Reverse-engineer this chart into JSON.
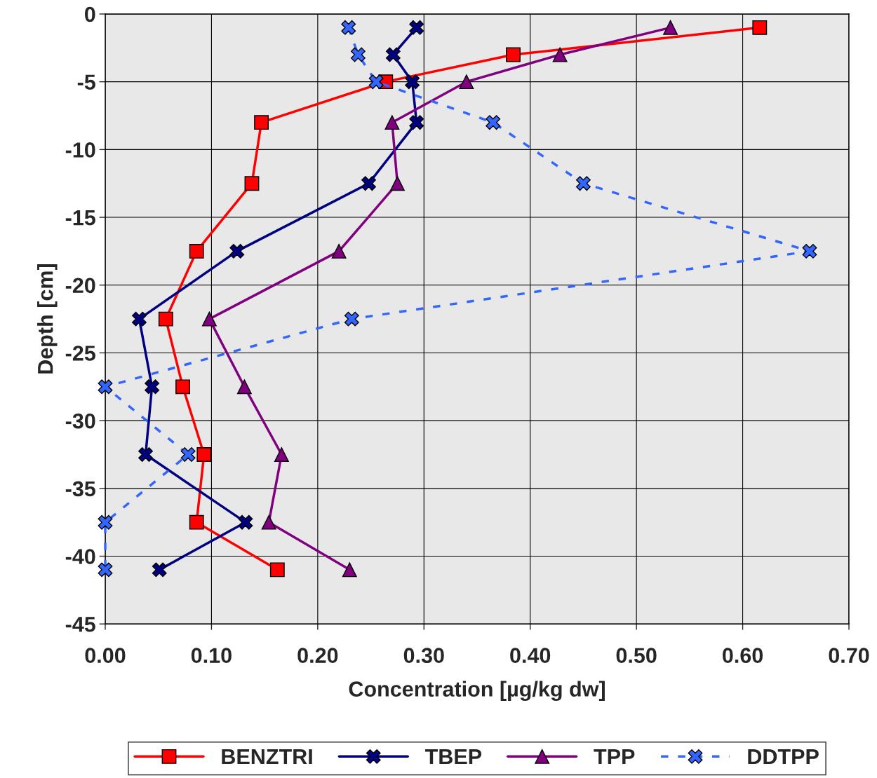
{
  "chart_data": {
    "type": "line",
    "xlabel": "Concentration [µg/kg dw]",
    "ylabel": "Depth [cm]",
    "xlim": [
      0,
      0.7
    ],
    "ylim": [
      -45,
      0
    ],
    "xticks": [
      {
        "value": 0,
        "label": "0.00"
      },
      {
        "value": 0.1,
        "label": "0.10"
      },
      {
        "value": 0.2,
        "label": "0.20"
      },
      {
        "value": 0.3,
        "label": "0.30"
      },
      {
        "value": 0.4,
        "label": "0.40"
      },
      {
        "value": 0.5,
        "label": "0.50"
      },
      {
        "value": 0.6,
        "label": "0.60"
      },
      {
        "value": 0.7,
        "label": "0.70"
      }
    ],
    "yticks": [
      0,
      -5,
      -10,
      -15,
      -20,
      -25,
      -30,
      -35,
      -40,
      -45
    ],
    "grid": true,
    "legend": "bottom",
    "series": [
      {
        "name": "BENZTRI",
        "color": "#ff0000",
        "marker": "square",
        "line_style": "solid",
        "x": [
          0.616,
          0.384,
          0.264,
          0.147,
          0.138,
          0.086,
          0.057,
          0.073,
          0.093,
          0.086,
          0.162
        ],
        "values": [
          -1,
          -3,
          -5,
          -8,
          -12.5,
          -17.5,
          -22.5,
          -27.5,
          -32.5,
          -37.5,
          -41
        ]
      },
      {
        "name": "TBEP",
        "color": "#000080",
        "marker": "cross",
        "line_style": "solid",
        "x": [
          0.293,
          0.271,
          0.289,
          0.293,
          0.248,
          0.124,
          0.032,
          0.044,
          0.038,
          0.132,
          0.051
        ],
        "values": [
          -1,
          -3,
          -5,
          -8,
          -12.5,
          -17.5,
          -22.5,
          -27.5,
          -32.5,
          -37.5,
          -41
        ]
      },
      {
        "name": "TPP",
        "color": "#800080",
        "marker": "triangle",
        "line_style": "solid",
        "x": [
          0.532,
          0.428,
          0.34,
          0.27,
          0.275,
          0.22,
          0.098,
          0.131,
          0.166,
          0.154,
          0.23
        ],
        "values": [
          -1,
          -3,
          -5,
          -8,
          -12.5,
          -17.5,
          -22.5,
          -27.5,
          -32.5,
          -37.5,
          -41
        ]
      },
      {
        "name": "DDTPP",
        "color": "#3366ff",
        "marker": "cross",
        "line_style": "dashed",
        "x": [
          0.229,
          0.238,
          0.255,
          0.365,
          0.45,
          0.663,
          0.232,
          0,
          0.078,
          0,
          0
        ],
        "values": [
          -1,
          -3,
          -5,
          -8,
          -12.5,
          -17.5,
          -22.5,
          -27.5,
          -32.5,
          -37.5,
          -41
        ]
      }
    ]
  }
}
